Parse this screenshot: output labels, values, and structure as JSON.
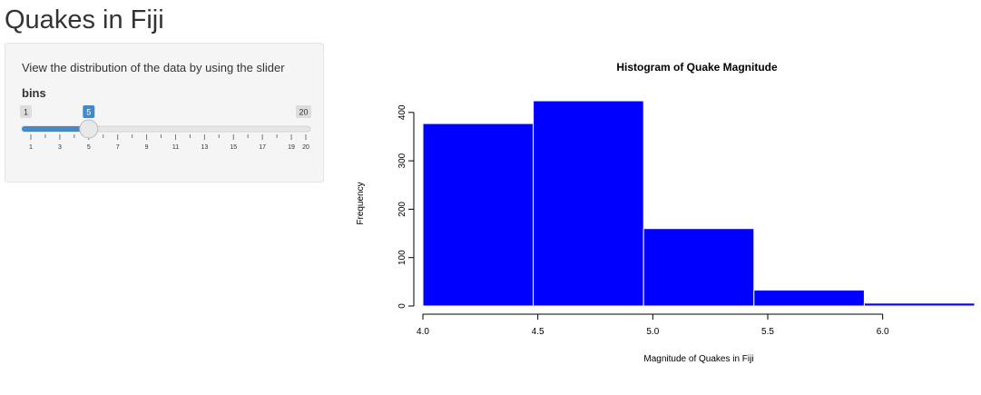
{
  "header": {
    "title": "Quakes in Fiji"
  },
  "sidebar": {
    "description": "View the distribution of the data by using the slider",
    "slider": {
      "label": "bins",
      "min": 1,
      "max": 20,
      "value": 5,
      "min_label": "1",
      "max_label": "20",
      "value_label": "5",
      "tick_labels": [
        "1",
        "3",
        "5",
        "7",
        "9",
        "11",
        "13",
        "15",
        "17",
        "19",
        "20"
      ],
      "accent_color": "#428bca"
    }
  },
  "chart_data": {
    "type": "bar",
    "title": "Histogram of Quake Magnitude",
    "xlabel": "Magnitude of Quakes in Fiji",
    "ylabel": "Frequency",
    "bar_color": "#0000ff",
    "bins": [
      {
        "x0": 4.0,
        "x1": 4.48,
        "count": 377
      },
      {
        "x0": 4.48,
        "x1": 4.96,
        "count": 424
      },
      {
        "x0": 4.96,
        "x1": 5.44,
        "count": 160
      },
      {
        "x0": 5.44,
        "x1": 5.92,
        "count": 33
      },
      {
        "x0": 5.92,
        "x1": 6.4,
        "count": 6
      }
    ],
    "xticks": [
      "4.0",
      "4.5",
      "5.0",
      "5.5",
      "6.0"
    ],
    "yticks": [
      "0",
      "100",
      "200",
      "300",
      "400"
    ],
    "xlim": [
      4.0,
      6.4
    ],
    "ylim": [
      0,
      424
    ]
  }
}
